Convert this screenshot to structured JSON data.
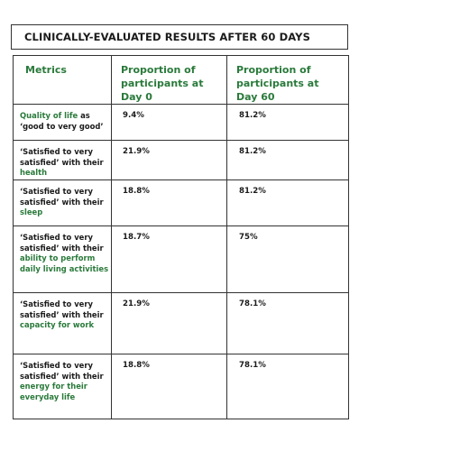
{
  "title": "CLINICALLY-EVALUATED RESULTS AFTER 60 DAYS",
  "headers": {
    "metrics": "Metrics",
    "day0": "Proportion of participants at Day 0",
    "day60": "Proportion of participants at Day 60"
  },
  "rows": [
    {
      "metric_pre": "",
      "metric_highlight": "Quality of life",
      "metric_post": " as ‘good to very good’",
      "day0": "9.4%",
      "day60": "81.2%"
    },
    {
      "metric_pre": "‘Satisfied to very satisfied’ with their ",
      "metric_highlight": "health",
      "metric_post": "",
      "day0": "21.9%",
      "day60": "81.2%"
    },
    {
      "metric_pre": "‘Satisfied to very satisfied’ with their ",
      "metric_highlight": "sleep",
      "metric_post": "",
      "day0": "18.8%",
      "day60": "81.2%"
    },
    {
      "metric_pre": "‘Satisfied to very satisfied’ with their ",
      "metric_highlight": "ability to perform daily living activities",
      "metric_post": "",
      "day0": "18.7%",
      "day60": "75%"
    },
    {
      "metric_pre": "‘Satisfied to very satisfied’ with their ",
      "metric_highlight": "capacity for work",
      "metric_post": "",
      "day0": "21.9%",
      "day60": "78.1%"
    },
    {
      "metric_pre": "‘Satisfied to very satisfied’ with their ",
      "metric_highlight": "energy for their everyday life",
      "metric_post": "",
      "day0": "18.8%",
      "day60": "78.1%"
    }
  ],
  "colors": {
    "accent_green": "#2a7a3b",
    "text": "#1b1b1b",
    "border": "#333333"
  }
}
